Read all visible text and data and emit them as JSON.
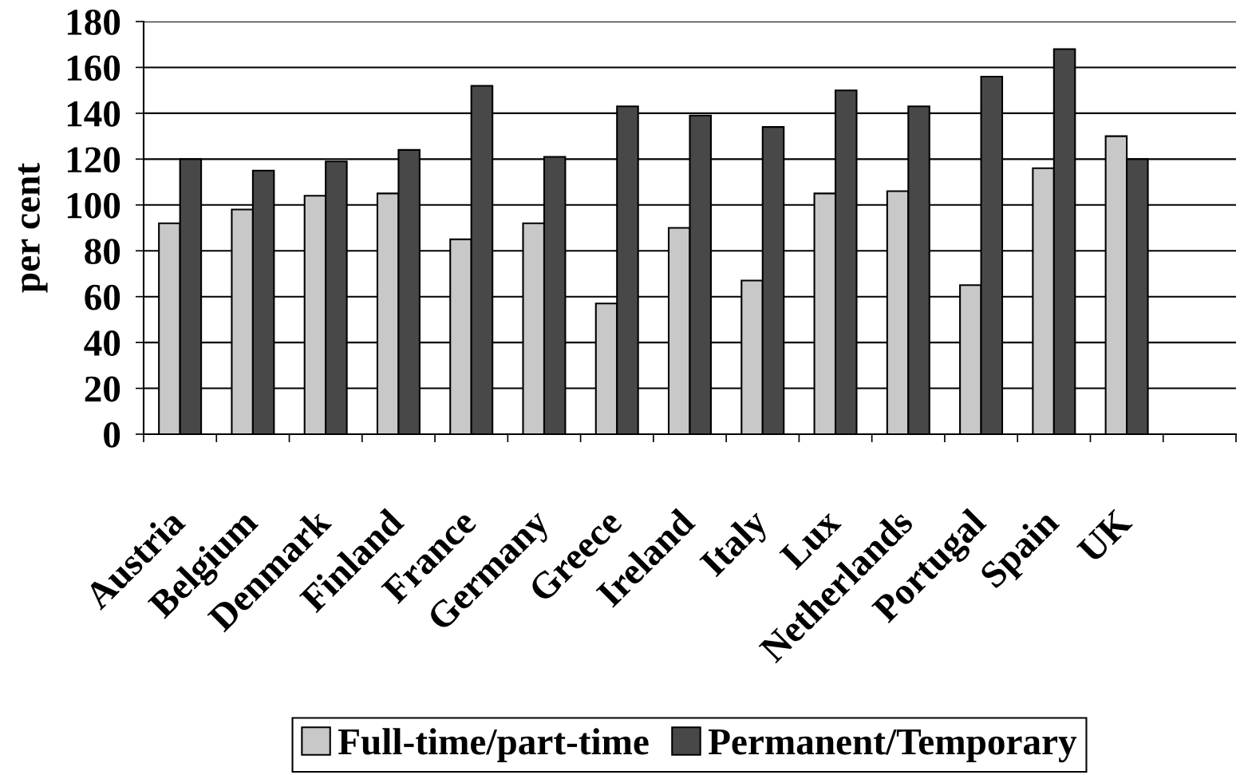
{
  "chart_data": {
    "type": "bar",
    "ylabel": "per cent",
    "categories": [
      "Austria",
      "Belgium",
      "Denmark",
      "Finland",
      "France",
      "Germany",
      "Greece",
      "Ireland",
      "Italy",
      "Lux",
      "Netherlands",
      "Portugal",
      "Spain",
      "UK",
      null
    ],
    "series": [
      {
        "name": "Full-time/part-time",
        "color": "#c8c8c8",
        "values": [
          92,
          98,
          104,
          105,
          85,
          92,
          57,
          90,
          67,
          105,
          106,
          65,
          116,
          130,
          null
        ]
      },
      {
        "name": "Permanent/Temporary",
        "color": "#484848",
        "values": [
          120,
          115,
          119,
          124,
          152,
          121,
          143,
          139,
          134,
          150,
          143,
          156,
          168,
          120,
          null
        ]
      }
    ],
    "ylim": [
      0,
      180
    ],
    "yticks": [
      0,
      20,
      40,
      60,
      80,
      100,
      120,
      140,
      160,
      180
    ],
    "grid": "y",
    "legend": "bottom"
  }
}
